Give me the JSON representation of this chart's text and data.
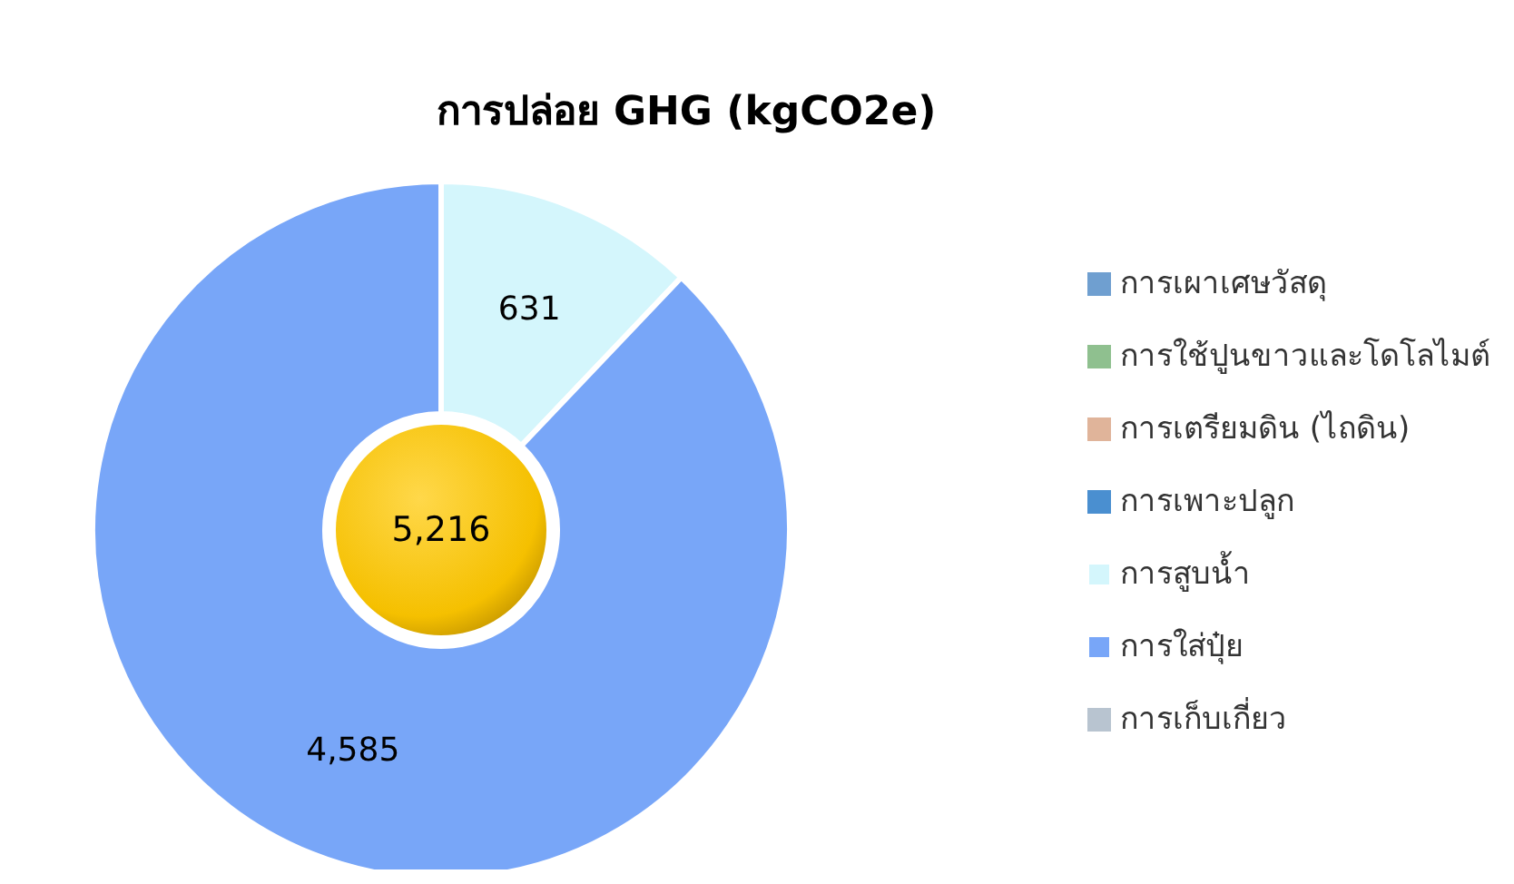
{
  "chart_data": {
    "type": "donut",
    "title": "การปล่อย GHG (kgCO2e)",
    "categories": [
      "การเผาเศษวัสดุ",
      "การใช้ปูนขาวและโดโลไมต์",
      "การเตรียมดิน (ไถดิน)",
      "การเพาะปลูก",
      "การสูบน้ำ",
      "การใส่ปุ๋ย",
      "การเก็บเกี่ยว"
    ],
    "values": [
      0,
      0,
      0,
      0,
      631,
      4585,
      0
    ],
    "value_labels": [
      null,
      null,
      null,
      null,
      "631",
      "4,585",
      null
    ],
    "colors": [
      "#6f9fd0",
      "#8fc08f",
      "#e0b49a",
      "#4a8fd0",
      "#d4f6fc",
      "#78a6f8",
      "#b8c4d0"
    ],
    "annotations": [
      "5,216"
    ],
    "legend": "right"
  }
}
